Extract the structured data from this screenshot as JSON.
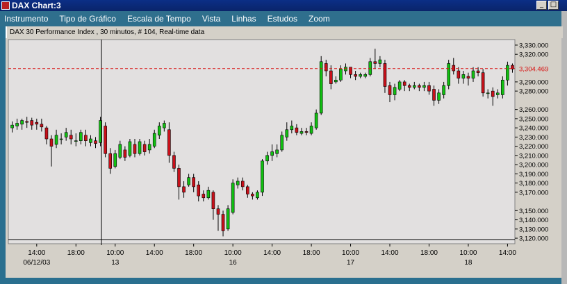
{
  "window": {
    "title": "DAX Chart:3",
    "buttons": {
      "minimize": "_",
      "maximize": "□"
    }
  },
  "menu": {
    "items": [
      "Instrumento",
      "Tipo de Gráfico",
      "Escala de Tempo",
      "Vista",
      "Linhas",
      "Estudos",
      "Zoom"
    ]
  },
  "chart_header": "DAX 30 Performance Index , 30 minutos, # 104, Real-time data",
  "colors": {
    "up": "#11c011",
    "down": "#c8101a",
    "bg": "#e2e0e0",
    "hline": "#d81010"
  },
  "chart_data": {
    "type": "candlestick",
    "title": "DAX 30 Performance Index , 30 minutos, # 104, Real-time data",
    "y_ticks": [
      "3,330.000",
      "3,320.000",
      "3,290.000",
      "3,280.000",
      "3,260.000",
      "3,250.000",
      "3,240.000",
      "3,230.000",
      "3,220.000",
      "3,210.000",
      "3,200.000",
      "3,190.000",
      "3,180.000",
      "3,170.000",
      "3,150.000",
      "3,140.000",
      "3,130.000",
      "3,120.000"
    ],
    "x_ticks": [
      {
        "time": "14:00",
        "date": "06/12/03"
      },
      {
        "time": "18:00",
        "date": ""
      },
      {
        "time": "10:00",
        "date": "13"
      },
      {
        "time": "14:00",
        "date": ""
      },
      {
        "time": "18:00",
        "date": ""
      },
      {
        "time": "10:00",
        "date": "16"
      },
      {
        "time": "14:00",
        "date": ""
      },
      {
        "time": "18:00",
        "date": ""
      },
      {
        "time": "10:00",
        "date": "17"
      },
      {
        "time": "14:00",
        "date": ""
      },
      {
        "time": "18:00",
        "date": ""
      },
      {
        "time": "10:00",
        "date": "18"
      },
      {
        "time": "14:00",
        "date": ""
      }
    ],
    "last_price_label": "3,304.469",
    "last_price": 3304.469,
    "candles": [
      [
        3240,
        3243,
        3235,
        3247
      ],
      [
        3242,
        3245,
        3238,
        3250
      ],
      [
        3244,
        3248,
        3238,
        3250
      ],
      [
        3247,
        3246,
        3240,
        3252
      ],
      [
        3248,
        3243,
        3238,
        3251
      ],
      [
        3246,
        3244,
        3238,
        3250
      ],
      [
        3244,
        3241,
        3236,
        3250
      ],
      [
        3240,
        3228,
        3222,
        3242
      ],
      [
        3228,
        3220,
        3198,
        3232
      ],
      [
        3222,
        3232,
        3218,
        3238
      ],
      [
        3228,
        3228,
        3222,
        3234
      ],
      [
        3230,
        3235,
        3226,
        3240
      ],
      [
        3232,
        3228,
        3222,
        3238
      ],
      [
        3226,
        3226,
        3220,
        3234
      ],
      [
        3226,
        3235,
        3222,
        3238
      ],
      [
        3232,
        3226,
        3220,
        3238
      ],
      [
        3224,
        3228,
        3220,
        3232
      ],
      [
        3226,
        3223,
        3218,
        3230
      ],
      [
        3224,
        3248,
        3220,
        3252
      ],
      [
        3242,
        3212,
        3208,
        3246
      ],
      [
        3212,
        3196,
        3190,
        3218
      ],
      [
        3198,
        3212,
        3196,
        3216
      ],
      [
        3208,
        3222,
        3206,
        3226
      ],
      [
        3216,
        3208,
        3204,
        3220
      ],
      [
        3210,
        3225,
        3208,
        3228
      ],
      [
        3222,
        3212,
        3208,
        3228
      ],
      [
        3212,
        3225,
        3210,
        3228
      ],
      [
        3222,
        3214,
        3210,
        3226
      ],
      [
        3216,
        3222,
        3212,
        3228
      ],
      [
        3220,
        3234,
        3218,
        3238
      ],
      [
        3232,
        3242,
        3228,
        3246
      ],
      [
        3240,
        3245,
        3236,
        3248
      ],
      [
        3238,
        3210,
        3202,
        3246
      ],
      [
        3210,
        3196,
        3192,
        3214
      ],
      [
        3196,
        3176,
        3162,
        3200
      ],
      [
        3176,
        3170,
        3164,
        3182
      ],
      [
        3178,
        3186,
        3176,
        3190
      ],
      [
        3186,
        3176,
        3170,
        3190
      ],
      [
        3178,
        3166,
        3160,
        3182
      ],
      [
        3168,
        3164,
        3160,
        3172
      ],
      [
        3164,
        3172,
        3162,
        3176
      ],
      [
        3170,
        3152,
        3140,
        3172
      ],
      [
        3152,
        3146,
        3128,
        3156
      ],
      [
        3146,
        3128,
        3122,
        3150
      ],
      [
        3130,
        3152,
        3128,
        3156
      ],
      [
        3148,
        3180,
        3146,
        3184
      ],
      [
        3178,
        3182,
        3174,
        3186
      ],
      [
        3182,
        3176,
        3172,
        3186
      ],
      [
        3176,
        3168,
        3164,
        3178
      ],
      [
        3168,
        3166,
        3162,
        3170
      ],
      [
        3164,
        3170,
        3162,
        3172
      ],
      [
        3170,
        3204,
        3166,
        3206
      ],
      [
        3204,
        3210,
        3200,
        3214
      ],
      [
        3210,
        3214,
        3204,
        3222
      ],
      [
        3212,
        3216,
        3208,
        3222
      ],
      [
        3216,
        3232,
        3214,
        3236
      ],
      [
        3230,
        3238,
        3226,
        3246
      ],
      [
        3238,
        3242,
        3234,
        3248
      ],
      [
        3240,
        3235,
        3232,
        3244
      ],
      [
        3234,
        3236,
        3232,
        3240
      ],
      [
        3236,
        3235,
        3232,
        3240
      ],
      [
        3234,
        3242,
        3232,
        3246
      ],
      [
        3240,
        3256,
        3238,
        3260
      ],
      [
        3256,
        3312,
        3254,
        3318
      ],
      [
        3310,
        3302,
        3296,
        3314
      ],
      [
        3302,
        3288,
        3282,
        3308
      ],
      [
        3290,
        3292,
        3288,
        3296
      ],
      [
        3292,
        3304,
        3290,
        3308
      ],
      [
        3302,
        3306,
        3298,
        3310
      ],
      [
        3306,
        3298,
        3294,
        3306
      ],
      [
        3298,
        3296,
        3292,
        3302
      ],
      [
        3296,
        3298,
        3294,
        3300
      ],
      [
        3296,
        3298,
        3294,
        3300
      ],
      [
        3298,
        3312,
        3296,
        3316
      ],
      [
        3312,
        3310,
        3304,
        3326
      ],
      [
        3310,
        3314,
        3306,
        3318
      ],
      [
        3310,
        3285,
        3278,
        3314
      ],
      [
        3286,
        3276,
        3268,
        3290
      ],
      [
        3276,
        3284,
        3270,
        3288
      ],
      [
        3282,
        3290,
        3280,
        3292
      ],
      [
        3290,
        3286,
        3280,
        3292
      ],
      [
        3286,
        3284,
        3280,
        3288
      ],
      [
        3284,
        3286,
        3282,
        3290
      ],
      [
        3286,
        3284,
        3280,
        3288
      ],
      [
        3284,
        3286,
        3280,
        3290
      ],
      [
        3286,
        3280,
        3276,
        3290
      ],
      [
        3282,
        3270,
        3264,
        3286
      ],
      [
        3270,
        3278,
        3266,
        3282
      ],
      [
        3276,
        3286,
        3272,
        3290
      ],
      [
        3286,
        3310,
        3282,
        3314
      ],
      [
        3308,
        3302,
        3298,
        3316
      ],
      [
        3302,
        3294,
        3288,
        3306
      ],
      [
        3294,
        3298,
        3288,
        3302
      ],
      [
        3296,
        3294,
        3286,
        3300
      ],
      [
        3294,
        3302,
        3290,
        3306
      ],
      [
        3302,
        3300,
        3296,
        3306
      ],
      [
        3300,
        3278,
        3274,
        3304
      ],
      [
        3278,
        3278,
        3272,
        3282
      ],
      [
        3280,
        3274,
        3264,
        3284
      ],
      [
        3276,
        3278,
        3272,
        3282
      ],
      [
        3276,
        3292,
        3272,
        3296
      ],
      [
        3292,
        3308,
        3286,
        3312
      ],
      [
        3308,
        3304,
        3300,
        3310
      ]
    ]
  }
}
